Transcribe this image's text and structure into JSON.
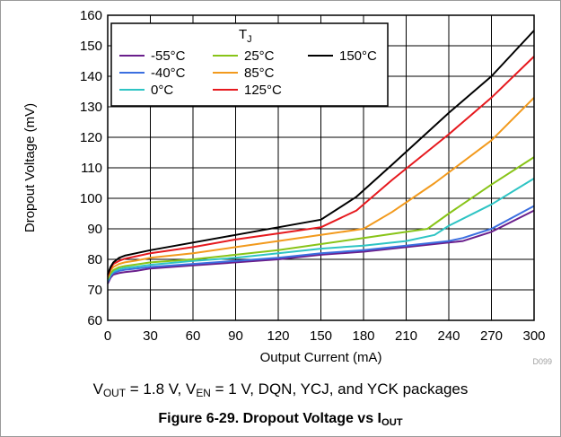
{
  "chart_data": {
    "type": "line",
    "xlabel": "Output Current (mA)",
    "ylabel": "Dropout Voltage (mV)",
    "xlim": [
      0,
      300
    ],
    "ylim": [
      60,
      160
    ],
    "xticks": [
      0,
      30,
      60,
      90,
      120,
      150,
      180,
      210,
      240,
      270,
      300
    ],
    "yticks": [
      60,
      70,
      80,
      90,
      100,
      110,
      120,
      130,
      140,
      150,
      160
    ],
    "grid": true,
    "legend": {
      "title": "T",
      "title_sub": "J",
      "placement": "top-left"
    },
    "series": [
      {
        "name": "-55°C",
        "color": "#6a1f8c",
        "points": [
          [
            0,
            72
          ],
          [
            2,
            74
          ],
          [
            4,
            75
          ],
          [
            8,
            75.5
          ],
          [
            12,
            75.8
          ],
          [
            20,
            76.2
          ],
          [
            30,
            77
          ],
          [
            60,
            78
          ],
          [
            90,
            79
          ],
          [
            120,
            80
          ],
          [
            150,
            81.5
          ],
          [
            180,
            82.5
          ],
          [
            210,
            84
          ],
          [
            240,
            85.5
          ],
          [
            250,
            86
          ],
          [
            270,
            89
          ],
          [
            300,
            96
          ]
        ]
      },
      {
        "name": "-40°C",
        "color": "#3b6fe0",
        "points": [
          [
            0,
            72.5
          ],
          [
            2,
            74.5
          ],
          [
            4,
            75.5
          ],
          [
            8,
            76.2
          ],
          [
            12,
            76.6
          ],
          [
            20,
            77
          ],
          [
            30,
            77.5
          ],
          [
            60,
            78.5
          ],
          [
            90,
            79.5
          ],
          [
            120,
            80.5
          ],
          [
            150,
            82
          ],
          [
            180,
            83
          ],
          [
            210,
            84.5
          ],
          [
            240,
            86
          ],
          [
            250,
            87
          ],
          [
            270,
            90
          ],
          [
            300,
            97.5
          ]
        ]
      },
      {
        "name": "0°C",
        "color": "#2ec4c4",
        "points": [
          [
            0,
            73
          ],
          [
            2,
            75
          ],
          [
            4,
            76
          ],
          [
            8,
            76.8
          ],
          [
            12,
            77.2
          ],
          [
            20,
            77.6
          ],
          [
            30,
            78.2
          ],
          [
            60,
            79.5
          ],
          [
            90,
            80.5
          ],
          [
            120,
            82
          ],
          [
            150,
            83.5
          ],
          [
            180,
            84.5
          ],
          [
            210,
            86
          ],
          [
            230,
            88
          ],
          [
            240,
            91
          ],
          [
            270,
            98
          ],
          [
            300,
            106.5
          ]
        ]
      },
      {
        "name": "25°C",
        "color": "#88c418",
        "points": [
          [
            0,
            73.5
          ],
          [
            2,
            75.5
          ],
          [
            4,
            76.5
          ],
          [
            8,
            77.4
          ],
          [
            12,
            77.8
          ],
          [
            20,
            78.3
          ],
          [
            30,
            79
          ],
          [
            60,
            80
          ],
          [
            90,
            81.5
          ],
          [
            120,
            83
          ],
          [
            150,
            85
          ],
          [
            180,
            87
          ],
          [
            210,
            89
          ],
          [
            225,
            90
          ],
          [
            240,
            95
          ],
          [
            270,
            104.5
          ],
          [
            300,
            113.5
          ]
        ]
      },
      {
        "name": "85°C",
        "color": "#f29a1d",
        "points": [
          [
            0,
            74
          ],
          [
            2,
            76.5
          ],
          [
            4,
            77.5
          ],
          [
            8,
            78.5
          ],
          [
            12,
            79
          ],
          [
            20,
            79.6
          ],
          [
            30,
            80.5
          ],
          [
            60,
            82
          ],
          [
            90,
            84
          ],
          [
            120,
            86
          ],
          [
            150,
            88
          ],
          [
            180,
            90
          ],
          [
            200,
            95.5
          ],
          [
            230,
            105
          ],
          [
            270,
            119
          ],
          [
            300,
            133
          ]
        ]
      },
      {
        "name": "125°C",
        "color": "#e6191e",
        "points": [
          [
            0,
            74.5
          ],
          [
            2,
            77
          ],
          [
            4,
            78.5
          ],
          [
            8,
            79.5
          ],
          [
            12,
            80.2
          ],
          [
            20,
            81
          ],
          [
            30,
            82
          ],
          [
            60,
            84
          ],
          [
            90,
            86.5
          ],
          [
            120,
            88.5
          ],
          [
            150,
            90.5
          ],
          [
            175,
            96
          ],
          [
            200,
            106
          ],
          [
            240,
            121
          ],
          [
            270,
            133
          ],
          [
            300,
            146.5
          ]
        ]
      },
      {
        "name": "150°C",
        "color": "#000000",
        "points": [
          [
            0,
            75
          ],
          [
            2,
            77.5
          ],
          [
            4,
            79
          ],
          [
            8,
            80.5
          ],
          [
            12,
            81.2
          ],
          [
            20,
            82
          ],
          [
            30,
            83
          ],
          [
            60,
            85.5
          ],
          [
            90,
            88
          ],
          [
            120,
            90.5
          ],
          [
            150,
            93
          ],
          [
            175,
            100.5
          ],
          [
            200,
            111
          ],
          [
            240,
            128
          ],
          [
            270,
            140
          ],
          [
            300,
            155
          ]
        ]
      }
    ],
    "annotation": "D099"
  },
  "conditions": {
    "v_out": "V",
    "v_out_sub": "OUT",
    "v_out_value": " = 1.8 V, ",
    "v_en": "V",
    "v_en_sub": "EN",
    "v_en_value": " = 1 V, DQN, YCJ, and YCK packages"
  },
  "caption": {
    "text": "Figure 6-29. Dropout Voltage vs I",
    "sub": "OUT"
  }
}
